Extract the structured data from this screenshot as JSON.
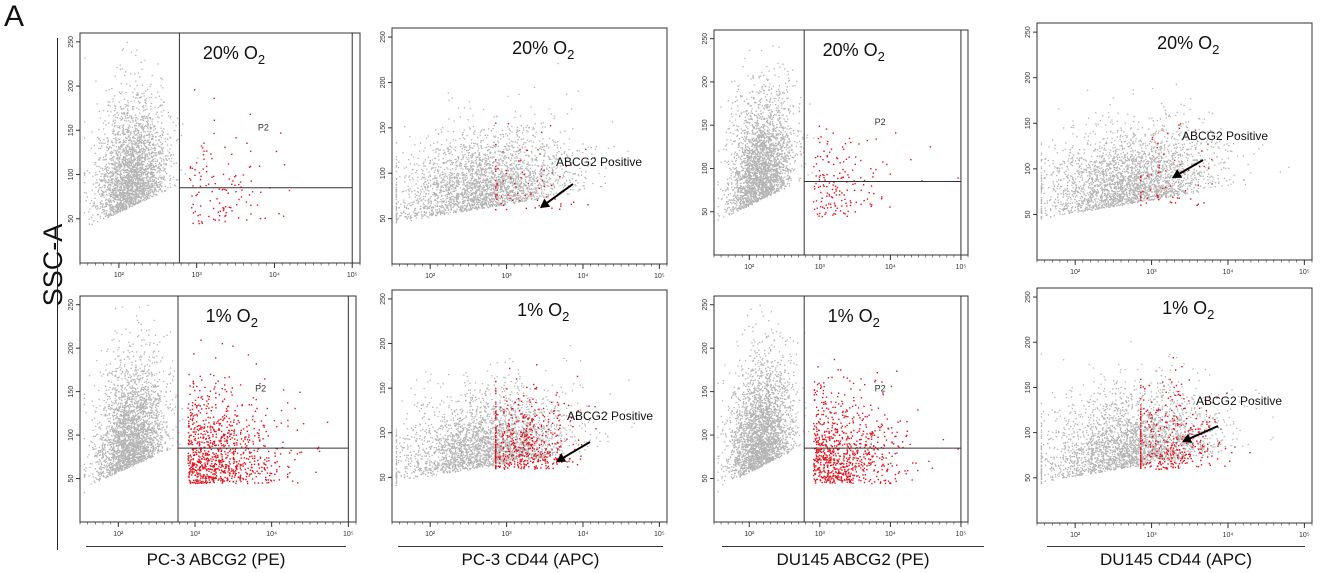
{
  "panel_label": "A",
  "y_axis_title": "SSC-A",
  "colors": {
    "background_events": "#b3b3b3",
    "positive_events": "#e0141e",
    "axis": "#333333"
  },
  "chart_data": [
    {
      "type": "scatter",
      "id": "pc3-abcg2-20",
      "condition": "20% O",
      "condition_sub": "2",
      "gate_label": "P2",
      "x_scale": "log",
      "xticks": [
        "10²",
        "10³",
        "10⁴",
        "10⁵"
      ],
      "ylim": [
        0,
        260
      ],
      "yticks": [
        "50",
        "100",
        "150",
        "200",
        "250"
      ],
      "gate": {
        "x_min": 600,
        "y_min": 85
      },
      "positive_fraction": 0.012,
      "annotation": ""
    },
    {
      "type": "scatter",
      "id": "pc3-cd44-20",
      "condition": "20% O",
      "condition_sub": "2",
      "gate_label": "",
      "x_scale": "log",
      "xticks": [
        "10²",
        "10³",
        "10⁴",
        "10⁵"
      ],
      "ylim": [
        0,
        260
      ],
      "yticks": [
        "50",
        "100",
        "150",
        "200",
        "250"
      ],
      "gate": null,
      "positive_fraction": 0.008,
      "annotation": "ABCG2 Positive"
    },
    {
      "type": "scatter",
      "id": "du145-abcg2-20",
      "condition": "20% O",
      "condition_sub": "2",
      "gate_label": "P2",
      "x_scale": "log",
      "xticks": [
        "10²",
        "10³",
        "10⁴",
        "10⁵"
      ],
      "ylim": [
        0,
        260
      ],
      "yticks": [
        "50",
        "100",
        "150",
        "200",
        "250"
      ],
      "gate": {
        "x_min": 600,
        "y_min": 85
      },
      "positive_fraction": 0.016,
      "annotation": ""
    },
    {
      "type": "scatter",
      "id": "du145-cd44-20",
      "condition": "20% O",
      "condition_sub": "2",
      "gate_label": "",
      "x_scale": "log",
      "xticks": [
        "10²",
        "10³",
        "10⁴",
        "10⁵"
      ],
      "ylim": [
        0,
        260
      ],
      "yticks": [
        "50",
        "100",
        "150",
        "200",
        "250"
      ],
      "gate": null,
      "positive_fraction": 0.006,
      "annotation": "ABCG2 Positive"
    },
    {
      "type": "scatter",
      "id": "pc3-abcg2-1",
      "condition": "1% O",
      "condition_sub": "2",
      "gate_label": "P2",
      "x_scale": "log",
      "xticks": [
        "10²",
        "10³",
        "10⁴",
        "10⁵"
      ],
      "ylim": [
        0,
        260
      ],
      "yticks": [
        "50",
        "100",
        "150",
        "200",
        "250"
      ],
      "gate": {
        "x_min": 600,
        "y_min": 85
      },
      "positive_fraction": 0.09,
      "annotation": ""
    },
    {
      "type": "scatter",
      "id": "pc3-cd44-1",
      "condition": "1% O",
      "condition_sub": "2",
      "gate_label": "",
      "x_scale": "log",
      "xticks": [
        "10²",
        "10³",
        "10⁴",
        "10⁵"
      ],
      "ylim": [
        0,
        260
      ],
      "yticks": [
        "50",
        "100",
        "150",
        "200",
        "250"
      ],
      "gate": null,
      "positive_fraction": 0.05,
      "annotation": "ABCG2 Positive"
    },
    {
      "type": "scatter",
      "id": "du145-abcg2-1",
      "condition": "1% O",
      "condition_sub": "2",
      "gate_label": "P2",
      "x_scale": "log",
      "xticks": [
        "10²",
        "10³",
        "10⁴",
        "10⁵"
      ],
      "ylim": [
        0,
        260
      ],
      "yticks": [
        "50",
        "100",
        "150",
        "200",
        "250"
      ],
      "gate": {
        "x_min": 600,
        "y_min": 85
      },
      "positive_fraction": 0.08,
      "annotation": ""
    },
    {
      "type": "scatter",
      "id": "du145-cd44-1",
      "condition": "1% O",
      "condition_sub": "2",
      "gate_label": "",
      "x_scale": "log",
      "xticks": [
        "10²",
        "10³",
        "10⁴",
        "10⁵"
      ],
      "ylim": [
        0,
        260
      ],
      "yticks": [
        "50",
        "100",
        "150",
        "200",
        "250"
      ],
      "gate": null,
      "positive_fraction": 0.04,
      "annotation": "ABCG2 Positive"
    }
  ],
  "column_titles": [
    "PC-3 ABCG2 (PE)",
    "PC-3 CD44 (APC)",
    "DU145 ABCG2 (PE)",
    "DU145 CD44 (APC)"
  ]
}
